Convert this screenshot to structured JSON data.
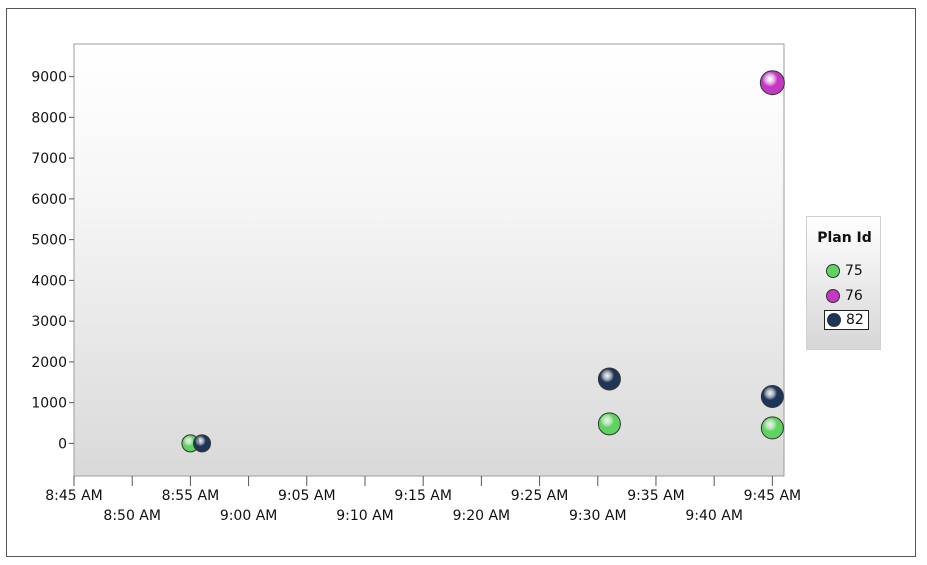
{
  "chart_data": {
    "type": "scatter",
    "legend": {
      "title": "Plan Id",
      "placement": "right",
      "selected": "82"
    },
    "y_ticks": [
      0,
      1000,
      2000,
      3000,
      4000,
      5000,
      6000,
      7000,
      8000,
      9000
    ],
    "ylim": [
      -800,
      9800
    ],
    "x_ticks": [
      "8:45 AM",
      "8:50 AM",
      "8:55 AM",
      "9:00 AM",
      "9:05 AM",
      "9:10 AM",
      "9:15 AM",
      "9:20 AM",
      "9:25 AM",
      "9:30 AM",
      "9:35 AM",
      "9:40 AM",
      "9:45 AM"
    ],
    "xlim": [
      "8:45 AM",
      "9:46 AM"
    ],
    "series": [
      {
        "name": "75",
        "color": "#5fd35f",
        "points": [
          {
            "x": "8:55 AM",
            "y": 0
          },
          {
            "x": "9:31 AM",
            "y": 480
          },
          {
            "x": "9:45 AM",
            "y": 380
          }
        ]
      },
      {
        "name": "76",
        "color": "#c238c2",
        "points": [
          {
            "x": "9:45 AM",
            "y": 8850
          }
        ]
      },
      {
        "name": "82",
        "color": "#1f3558",
        "points": [
          {
            "x": "8:56 AM",
            "y": 0
          },
          {
            "x": "9:31 AM",
            "y": 1580
          },
          {
            "x": "9:45 AM",
            "y": 1150
          }
        ]
      }
    ],
    "grid": false
  }
}
